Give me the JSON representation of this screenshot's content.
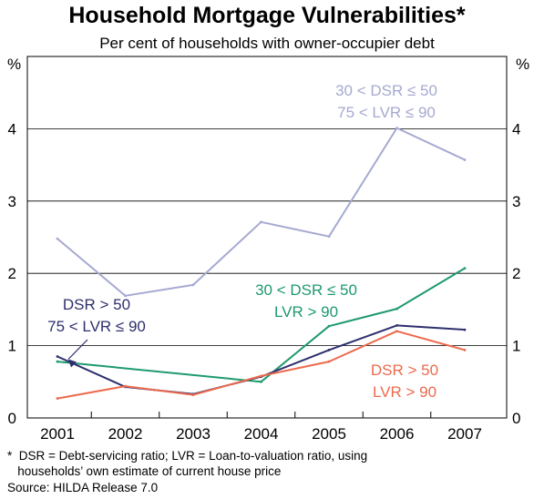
{
  "chart_data": {
    "type": "line",
    "title": "Household Mortgage Vulnerabilities*",
    "subtitle": "Per cent of households with owner-occupier debt",
    "y_unit_left": "%",
    "y_unit_right": "%",
    "categories": [
      "2001",
      "2002",
      "2003",
      "2004",
      "2005",
      "2006",
      "2007"
    ],
    "ylim": [
      0,
      5
    ],
    "yticks": [
      "0",
      "1",
      "2",
      "3",
      "4"
    ],
    "grid": "horizontal",
    "series": [
      {
        "name": "30 < DSR ≤ 50 75 < LVR ≤ 90",
        "label_lines": [
          "30 < DSR ≤ 50",
          "75 < LVR ≤ 90"
        ],
        "color": "#a6a9d1",
        "values": [
          2.48,
          1.69,
          1.84,
          2.71,
          2.51,
          4.01,
          3.57
        ]
      },
      {
        "name": "30 < DSR ≤ 50 LVR > 90",
        "label_lines": [
          "30 < DSR ≤ 50",
          "LVR > 90"
        ],
        "color": "#1e9a6e",
        "values": [
          0.78,
          null,
          null,
          0.5,
          1.27,
          1.51,
          2.07
        ]
      },
      {
        "name": "DSR > 50 75 < LVR ≤ 90",
        "label_lines": [
          "DSR > 50",
          "75 < LVR ≤ 90"
        ],
        "color": "#2e2f6e",
        "values": [
          0.85,
          0.43,
          0.33,
          0.57,
          0.94,
          1.28,
          1.22
        ]
      },
      {
        "name": "DSR > 50 LVR > 90",
        "label_lines": [
          "DSR > 50",
          "LVR > 90"
        ],
        "color": "#ec6a4d",
        "values": [
          0.27,
          0.44,
          0.32,
          0.58,
          0.78,
          1.2,
          0.94
        ]
      }
    ],
    "footnote_lines": [
      "*  DSR = Debt-servicing ratio; LVR = Loan-to-valuation ratio, using",
      "   households’ own estimate of current house price"
    ],
    "source": "Source: HILDA Release 7.0"
  }
}
